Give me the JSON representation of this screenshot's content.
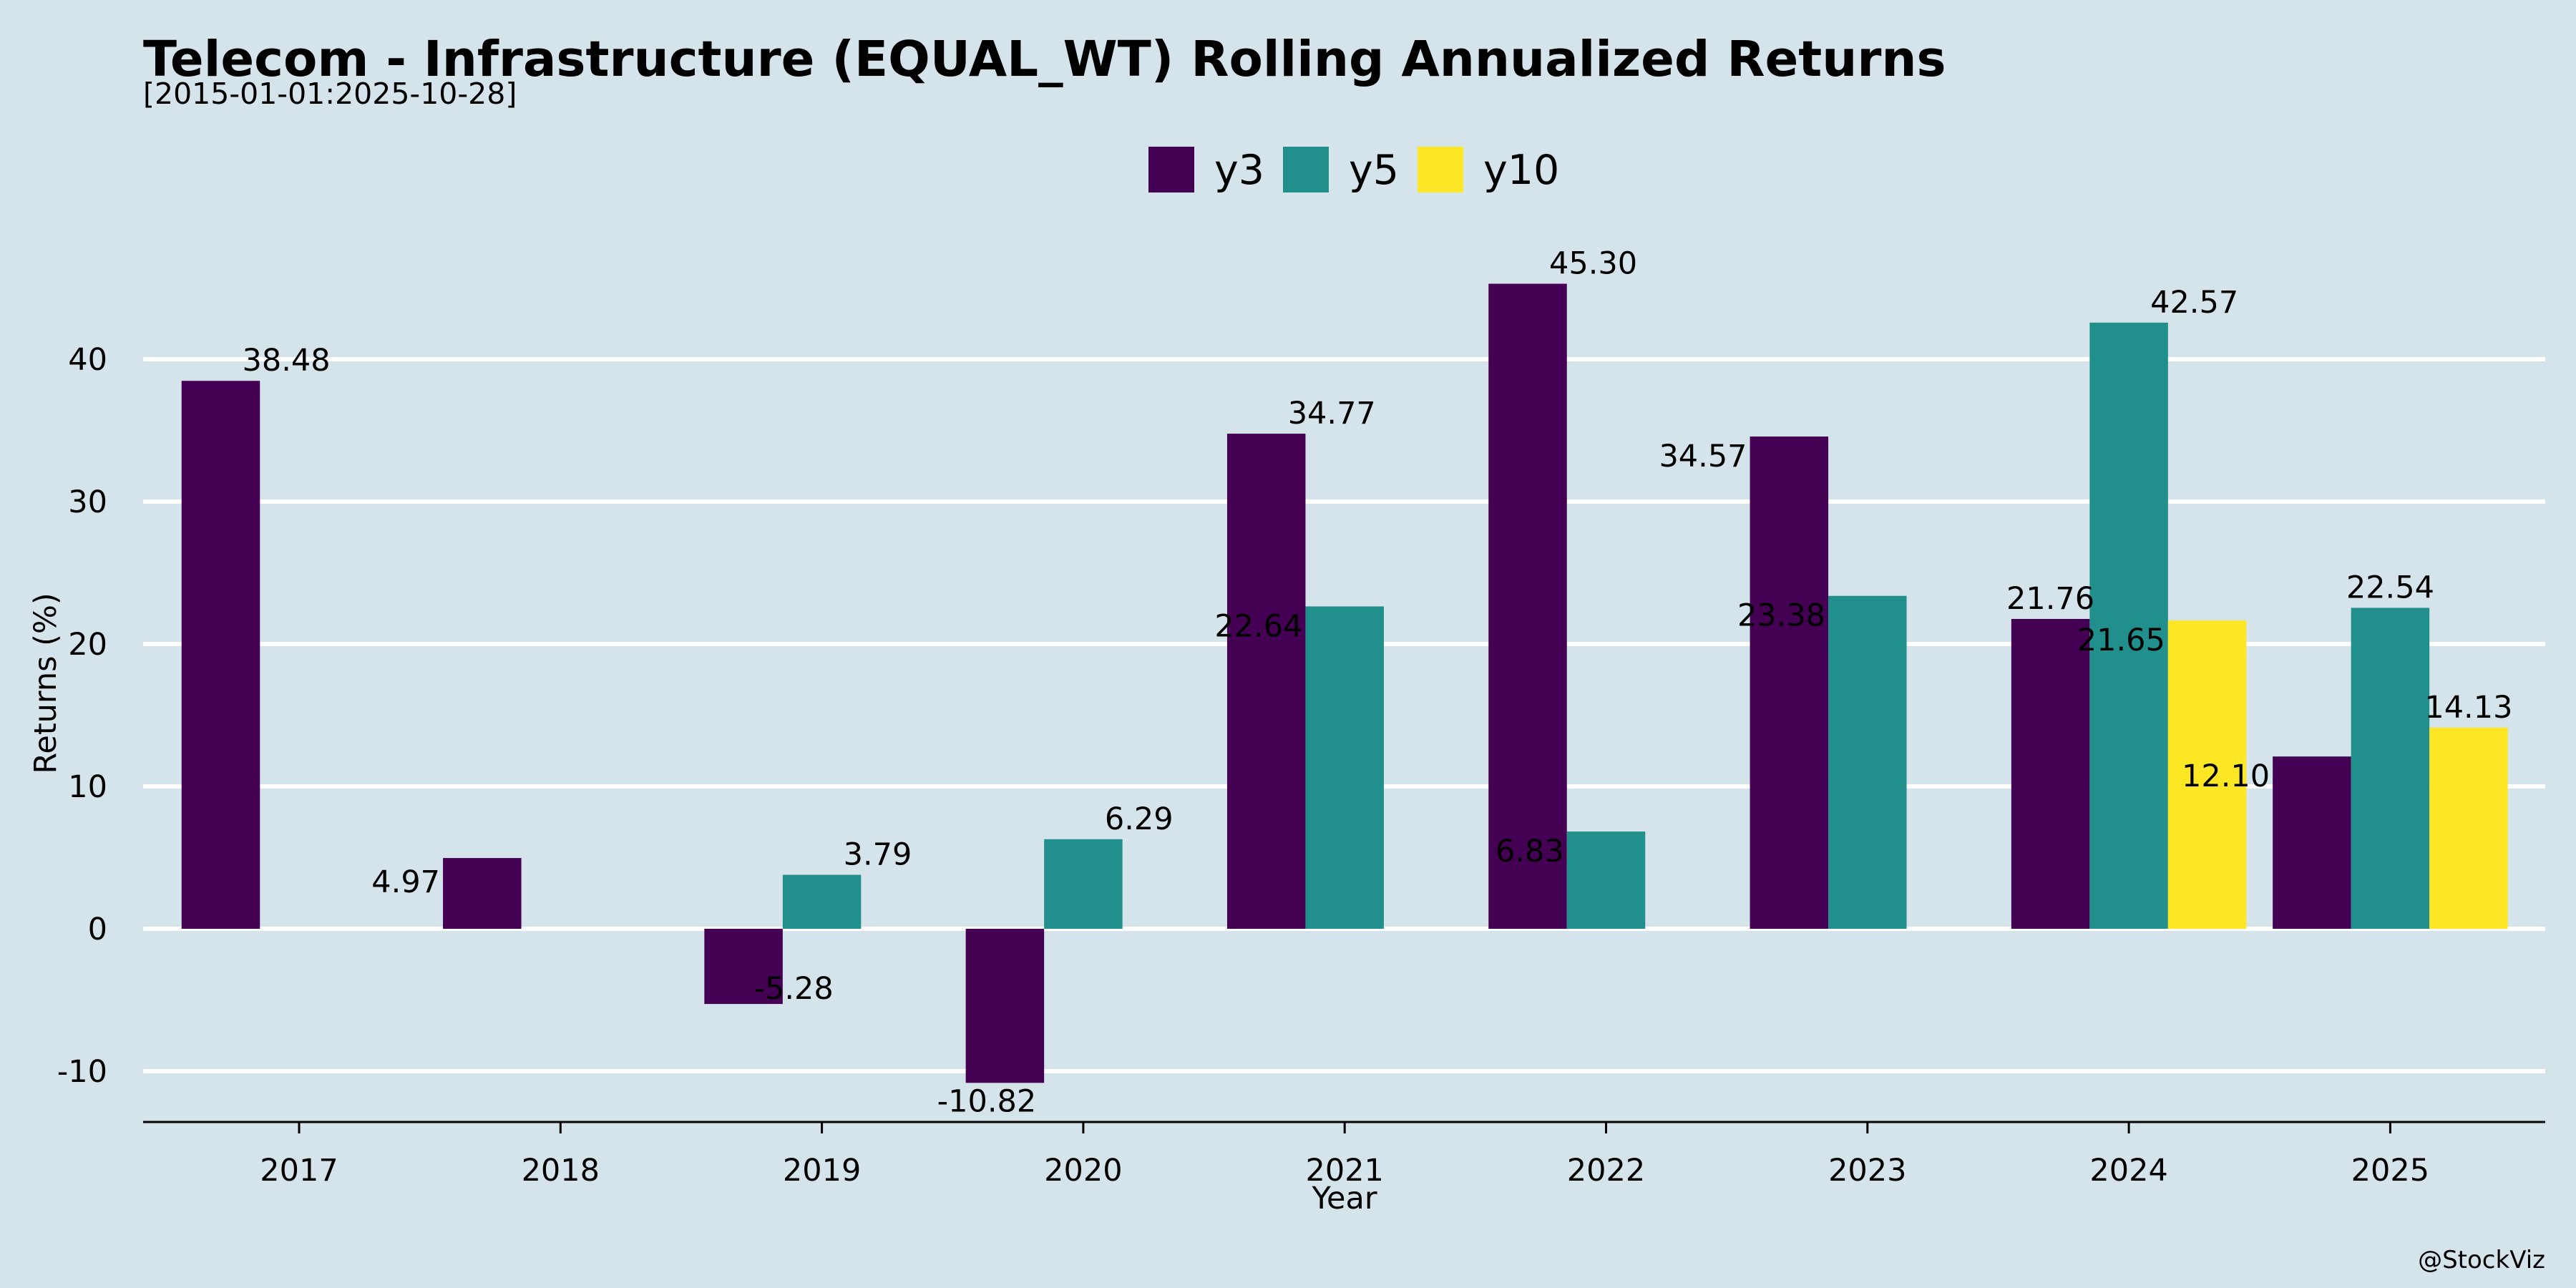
{
  "chart_data": {
    "type": "bar",
    "title": "Telecom - Infrastructure (EQUAL_WT) Rolling Annualized Returns",
    "subtitle": "[2015-01-01:2025-10-28]",
    "xlabel": "Year",
    "ylabel": "Returns (%)",
    "categories": [
      "2017",
      "2018",
      "2019",
      "2020",
      "2021",
      "2022",
      "2023",
      "2024",
      "2025"
    ],
    "yticks": [
      "-10",
      "0",
      "10",
      "20",
      "30",
      "40"
    ],
    "ylim": [
      -13.6,
      48.5
    ],
    "grid": "horizontal",
    "legend_position": "top-center",
    "series": [
      {
        "name": "y3",
        "color": "#440154",
        "values": [
          38.48,
          4.97,
          -5.28,
          -10.82,
          34.77,
          45.3,
          34.57,
          21.76,
          12.1
        ],
        "labels": [
          "38.48",
          "4.97",
          "-5.28",
          "-10.82",
          "34.77",
          "45.30",
          "34.57",
          "21.76",
          "12.10"
        ]
      },
      {
        "name": "y5",
        "color": "#21908d",
        "values": [
          null,
          null,
          3.79,
          6.29,
          22.64,
          6.83,
          23.38,
          42.57,
          22.54
        ],
        "labels": [
          "",
          "",
          "3.79",
          "6.29",
          "22.64",
          "6.83",
          "23.38",
          "42.57",
          "22.54"
        ]
      },
      {
        "name": "y10",
        "color": "#fde725",
        "values": [
          null,
          null,
          null,
          null,
          null,
          null,
          null,
          21.65,
          14.13
        ],
        "labels": [
          "",
          "",
          "",
          "",
          "",
          "",
          "",
          "21.65",
          "14.13"
        ]
      }
    ],
    "watermark": "@StockViz"
  }
}
